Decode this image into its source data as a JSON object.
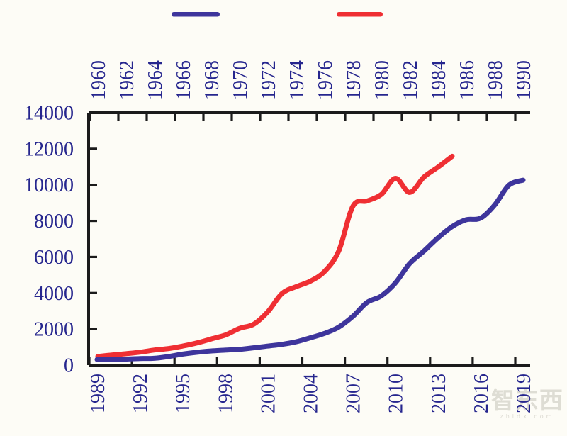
{
  "page": {
    "background": "#fdfcf6"
  },
  "legend": {
    "items": [
      {
        "id": "blue-series-swatch",
        "color": "#3e359c"
      },
      {
        "id": "red-series-swatch",
        "color": "#ef2f33"
      }
    ]
  },
  "watermark": {
    "text": "智东西",
    "subtext": "zhidx.com"
  },
  "chart_data": {
    "type": "line",
    "title": "",
    "grid": false,
    "legend_position": "top",
    "y_axis": {
      "min": 0,
      "max": 14000,
      "step": 2000,
      "tick_labels": [
        "0",
        "2000",
        "4000",
        "6000",
        "8000",
        "10000",
        "12000",
        "14000"
      ],
      "label_color": "#26268e"
    },
    "top_x_axis": {
      "min": 1960,
      "max": 1990,
      "step": 2,
      "tick_labels": [
        "1960",
        "1962",
        "1964",
        "1966",
        "1968",
        "1970",
        "1972",
        "1974",
        "1976",
        "1978",
        "1980",
        "1982",
        "1984",
        "1986",
        "1988",
        "1990"
      ],
      "label_rotation": 90
    },
    "bottom_x_axis": {
      "min": 1989,
      "max": 2019,
      "step": 3,
      "tick_labels": [
        "1989",
        "1992",
        "1995",
        "1998",
        "2001",
        "2004",
        "2007",
        "2010",
        "2013",
        "2016",
        "2019"
      ],
      "label_rotation": 90
    },
    "series": [
      {
        "id": "red-line-top-axis",
        "axis": "top",
        "color": "#ef2f33",
        "stroke_width": 7,
        "years": [
          1960,
          1961,
          1962,
          1963,
          1964,
          1965,
          1966,
          1967,
          1968,
          1969,
          1970,
          1971,
          1972,
          1973,
          1974,
          1975,
          1976,
          1977,
          1978,
          1979,
          1980,
          1981,
          1982,
          1983,
          1984,
          1985
        ],
        "values": [
          479,
          564,
          634,
          718,
          836,
          920,
          1058,
          1229,
          1451,
          1669,
          2038,
          2272,
          2967,
          3975,
          4354,
          4659,
          5198,
          6336,
          8821,
          9105,
          9465,
          10361,
          9578,
          10425,
          10984,
          11586
        ]
      },
      {
        "id": "blue-line-bottom-axis",
        "axis": "bottom",
        "color": "#3e359c",
        "stroke_width": 7,
        "years": [
          1989,
          1990,
          1991,
          1992,
          1993,
          1994,
          1995,
          1996,
          1997,
          1998,
          1999,
          2000,
          2001,
          2002,
          2003,
          2004,
          2005,
          2006,
          2007,
          2008,
          2009,
          2010,
          2011,
          2012,
          2013,
          2014,
          2015,
          2016,
          2017,
          2018,
          2019
        ],
        "values": [
          311,
          318,
          333,
          366,
          377,
          473,
          610,
          709,
          782,
          829,
          873,
          959,
          1053,
          1149,
          1289,
          1509,
          1753,
          2099,
          2694,
          3468,
          3832,
          4550,
          5618,
          6317,
          7051,
          7679,
          8067,
          8148,
          8879,
          9977,
          10262
        ]
      }
    ]
  }
}
